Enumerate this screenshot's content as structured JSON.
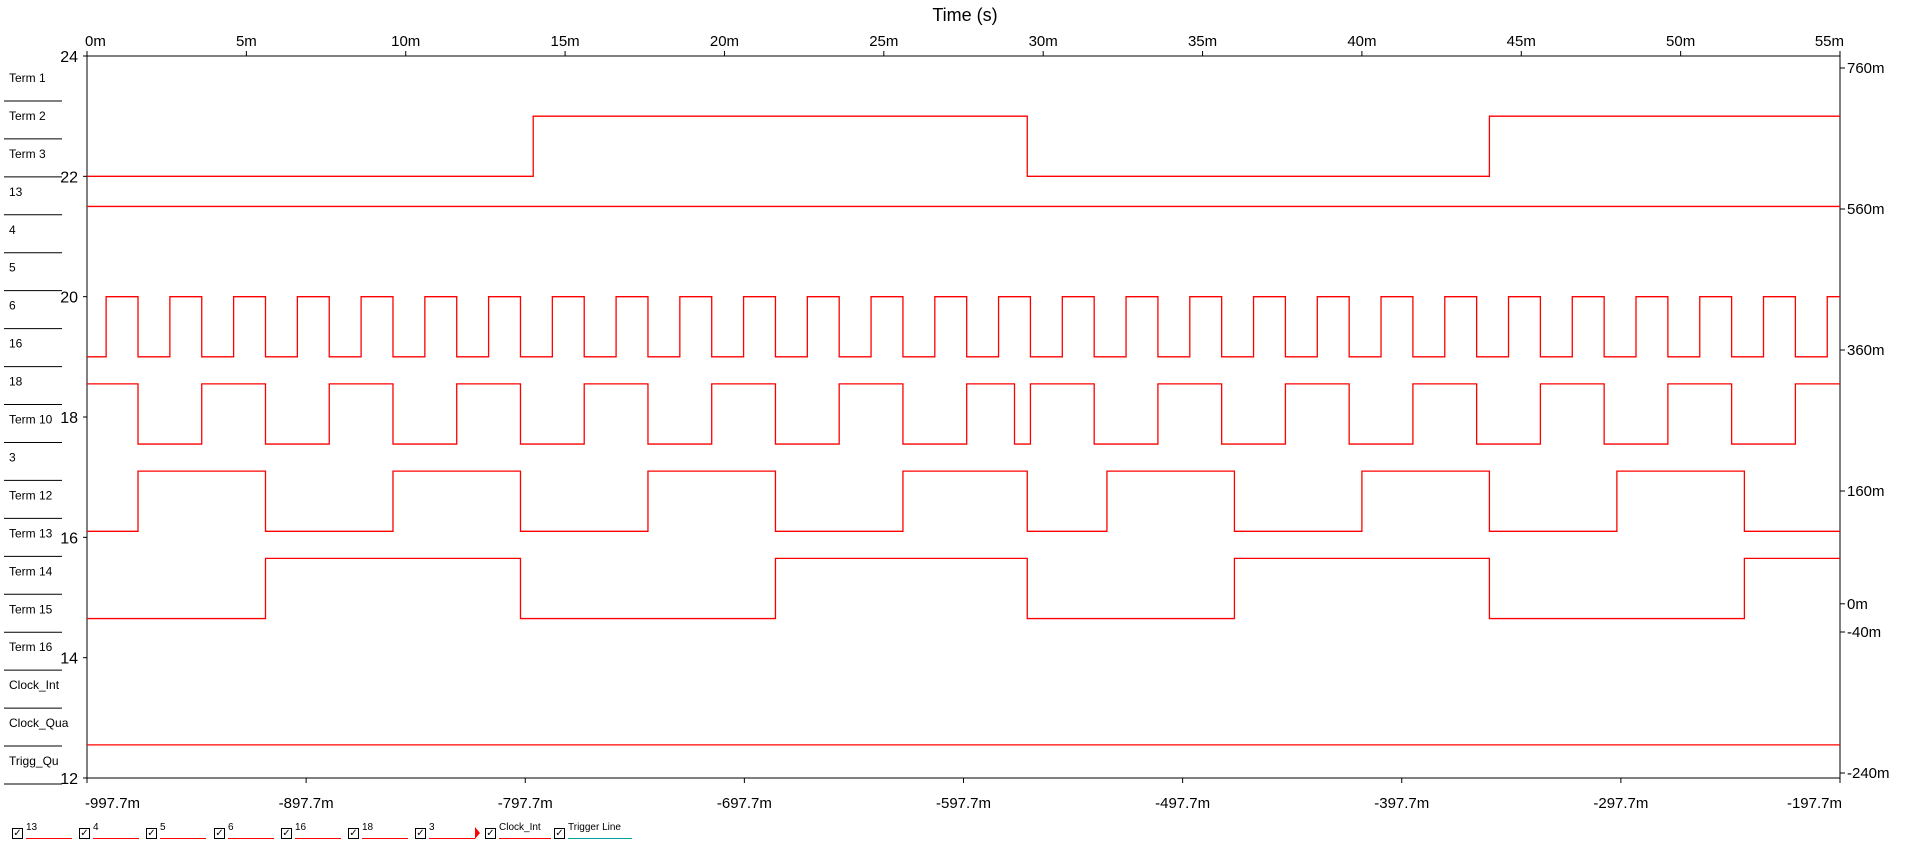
{
  "chart_data": {
    "type": "line",
    "title": "Time (s)",
    "x_top_ticks": [
      "0m",
      "5m",
      "10m",
      "15m",
      "20m",
      "25m",
      "30m",
      "35m",
      "40m",
      "45m",
      "50m",
      "55m"
    ],
    "x_top_range": [
      0,
      55
    ],
    "x_bottom_ticks": [
      "-997.7m",
      "-897.7m",
      "-797.7m",
      "-697.7m",
      "-597.7m",
      "-497.7m",
      "-397.7m",
      "-297.7m",
      "-197.7m"
    ],
    "x_bottom_range": [
      -997.7,
      -197.7
    ],
    "y_left_ticks": [
      "24",
      "22",
      "20",
      "18",
      "16",
      "14",
      "12"
    ],
    "y_left_range": [
      12,
      24
    ],
    "y_right_ticks": [
      "760m",
      "560m",
      "360m",
      "160m",
      "0m",
      "-40m",
      "-240m"
    ],
    "y_right_values": [
      760,
      560,
      360,
      160,
      0,
      -40,
      -240
    ],
    "grid": false,
    "channel_labels": [
      "Term 1",
      "Term 2",
      "Term 3",
      "13",
      "4",
      "5",
      "6",
      "16",
      "18",
      "Term 10",
      "3",
      "Term 12",
      "Term 13",
      "Term 14",
      "Term 15",
      "Term 16",
      "Clock_Int",
      "Clock_Qua",
      "Trigg_Qu"
    ],
    "series": [
      {
        "name": "13",
        "color": "#ff0000",
        "y_low": 22.0,
        "y_high": 23.0,
        "initial": 0,
        "transitions": [
          14,
          29.5,
          44
        ]
      },
      {
        "name": "4",
        "color": "#ff0000",
        "constant": 21.5
      },
      {
        "name": "6",
        "color": "#ff0000",
        "y_low": 19.0,
        "y_high": 20.0,
        "initial": 0,
        "transitions": [
          0.6,
          1.6,
          2.6,
          3.6,
          4.6,
          5.6,
          6.6,
          7.6,
          8.6,
          9.6,
          10.6,
          11.6,
          12.6,
          13.6,
          14.6,
          15.6,
          16.6,
          17.6,
          18.6,
          19.6,
          20.6,
          21.6,
          22.6,
          23.6,
          24.6,
          25.6,
          26.6,
          27.6,
          28.6,
          29.6,
          30.6,
          31.6,
          32.6,
          33.6,
          34.6,
          35.6,
          36.6,
          37.6,
          38.6,
          39.6,
          40.6,
          41.6,
          42.6,
          43.6,
          44.6,
          45.6,
          46.6,
          47.6,
          48.6,
          49.6,
          50.6,
          51.6,
          52.6,
          53.6,
          54.6
        ]
      },
      {
        "name": "18",
        "color": "#ff0000",
        "y_low": 17.55,
        "y_high": 18.55,
        "initial": 1,
        "transitions": [
          1.6,
          3.6,
          5.6,
          7.6,
          9.6,
          11.6,
          13.6,
          15.6,
          17.6,
          19.6,
          21.6,
          23.6,
          25.6,
          27.6,
          29.1,
          29.6,
          31.6,
          33.6,
          35.6,
          37.6,
          39.6,
          41.6,
          43.6,
          45.6,
          47.6,
          49.6,
          51.6,
          53.6
        ]
      },
      {
        "name": "3",
        "color": "#ff0000",
        "y_low": 16.1,
        "y_high": 17.1,
        "initial": 0,
        "transitions": [
          1.6,
          5.6,
          9.6,
          13.6,
          17.6,
          21.6,
          25.6,
          29.5,
          32,
          36,
          40,
          44,
          48,
          52
        ]
      },
      {
        "name": "16",
        "color": "#ff0000",
        "y_low": 14.65,
        "y_high": 15.65,
        "initial": 0,
        "transitions": [
          5.6,
          13.6,
          21.6,
          29.5,
          36,
          44,
          52
        ]
      },
      {
        "name": "Clock_Int",
        "color": "#ff0000",
        "constant": 12.55
      }
    ]
  },
  "legend": [
    {
      "name": "13",
      "checked": true
    },
    {
      "name": "4",
      "checked": true
    },
    {
      "name": "5",
      "checked": true
    },
    {
      "name": "6",
      "checked": true
    },
    {
      "name": "16",
      "checked": true
    },
    {
      "name": "18",
      "checked": true
    },
    {
      "name": "3",
      "checked": true
    },
    {
      "name": "Clock_Int",
      "checked": true,
      "marker": true
    },
    {
      "name": "Trigger Line",
      "checked": true,
      "teal": true
    }
  ]
}
